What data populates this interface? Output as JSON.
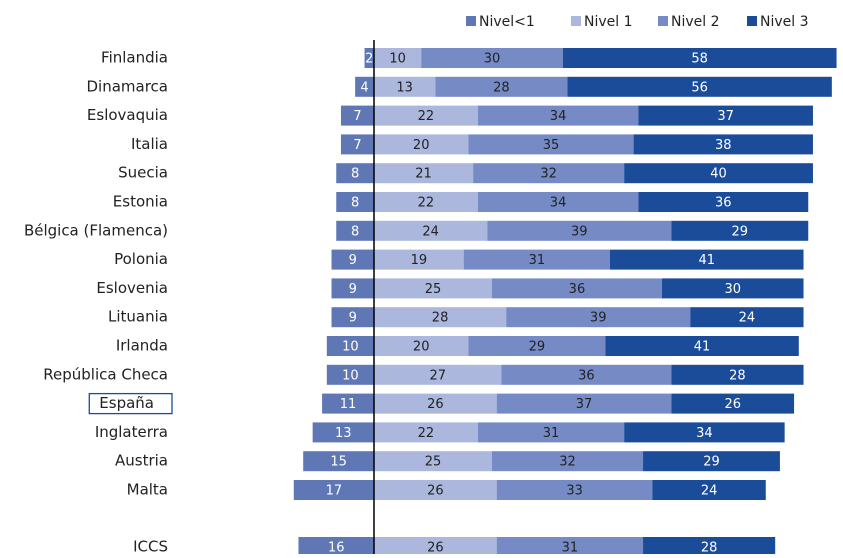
{
  "chart_data": {
    "type": "diverging_bar",
    "categories": [
      "Finlandia",
      "Dinamarca",
      "Eslovaquia",
      "Italia",
      "Suecia",
      "Estonia",
      "Bélgica (Flamenca)",
      "Polonia",
      "Eslovenia",
      "Lituania",
      "Irlanda",
      "República Checa",
      "España",
      "Inglaterra",
      "Austria",
      "Malta",
      "ICCS"
    ],
    "highlight_index": 12,
    "series": [
      {
        "name": "Nivel<1",
        "color": "#5f77b5",
        "text_color": "#ffffff",
        "values": [
          2,
          4,
          7,
          7,
          8,
          8,
          8,
          9,
          9,
          9,
          10,
          10,
          11,
          13,
          15,
          17,
          16
        ]
      },
      {
        "name": "Nivel 1",
        "color": "#abb7dd",
        "text_color": "#222222",
        "values": [
          10,
          13,
          22,
          20,
          21,
          22,
          24,
          19,
          25,
          28,
          20,
          27,
          26,
          22,
          25,
          26,
          26
        ]
      },
      {
        "name": "Nivel 2",
        "color": "#768bc6",
        "text_color": "#222222",
        "values": [
          30,
          28,
          34,
          35,
          32,
          34,
          39,
          31,
          36,
          39,
          29,
          36,
          37,
          31,
          32,
          33,
          31
        ]
      },
      {
        "name": "Nivel 3",
        "color": "#1b4c99",
        "text_color": "#ffffff",
        "values": [
          58,
          56,
          37,
          38,
          40,
          36,
          29,
          41,
          30,
          24,
          41,
          28,
          26,
          34,
          29,
          24,
          28
        ]
      }
    ]
  }
}
